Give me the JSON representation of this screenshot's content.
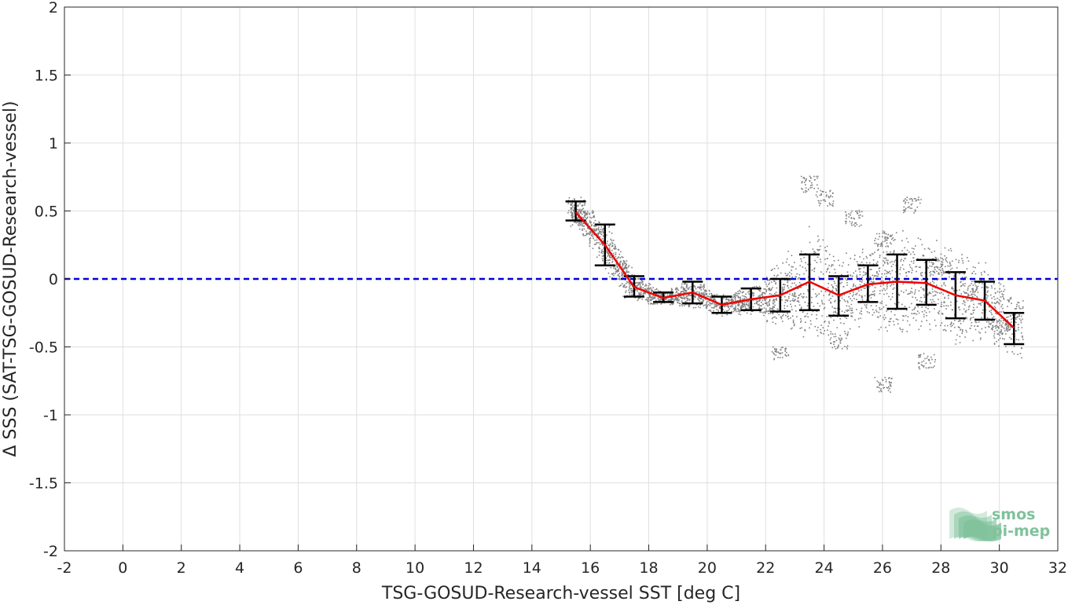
{
  "chart_data": {
    "type": "scatter",
    "xlabel": "TSG-GOSUD-Research-vessel SST [deg C]",
    "ylabel": "Δ SSS (SAT-TSG-GOSUD-Research-vessel)",
    "xlim": [
      -2,
      32
    ],
    "ylim": [
      -2,
      2
    ],
    "xticks": [
      -2,
      0,
      2,
      4,
      6,
      8,
      10,
      12,
      14,
      16,
      18,
      20,
      22,
      24,
      26,
      28,
      30,
      32
    ],
    "yticks": [
      -2,
      -1.5,
      -1,
      -0.5,
      0,
      0.5,
      1,
      1.5,
      2
    ],
    "grid": true,
    "reference_line": {
      "y": 0,
      "color": "#0000dd",
      "style": "dashed"
    },
    "scatter_cloud": {
      "color": "#808080",
      "note_points": [
        [
          15.5,
          0.55
        ],
        [
          15.8,
          0.45
        ],
        [
          16.2,
          0.35
        ],
        [
          16.6,
          0.2
        ],
        [
          17.0,
          0.05
        ],
        [
          17.4,
          -0.08
        ],
        [
          18.2,
          -0.12
        ],
        [
          19.0,
          -0.12
        ],
        [
          20.0,
          -0.15
        ],
        [
          21.0,
          -0.18
        ],
        [
          22.0,
          -0.2
        ],
        [
          23.0,
          -0.1
        ],
        [
          23.5,
          0.7
        ],
        [
          24.0,
          0.6
        ],
        [
          25.0,
          0.45
        ],
        [
          26.0,
          0.3
        ],
        [
          27.0,
          0.55
        ],
        [
          28.0,
          0.1
        ],
        [
          29.0,
          -0.1
        ],
        [
          30.0,
          -0.35
        ],
        [
          24.5,
          -0.45
        ],
        [
          26.0,
          -0.77
        ],
        [
          27.5,
          -0.6
        ],
        [
          22.5,
          -0.55
        ]
      ]
    },
    "series": [
      {
        "type": "line",
        "color": "#ee0000",
        "x": [
          15.5,
          16.5,
          17.5,
          18.5,
          19.5,
          20.5,
          21.5,
          22.5,
          23.5,
          24.5,
          25.5,
          26.5,
          27.5,
          28.5,
          29.5,
          30.5
        ],
        "values": [
          0.49,
          0.25,
          -0.06,
          -0.14,
          -0.1,
          -0.19,
          -0.15,
          -0.12,
          -0.02,
          -0.12,
          -0.04,
          -0.02,
          -0.03,
          -0.12,
          -0.16,
          -0.36
        ]
      }
    ],
    "error_bars": {
      "color": "#000000",
      "x": [
        15.5,
        16.5,
        17.5,
        18.5,
        19.5,
        20.5,
        21.5,
        22.5,
        23.5,
        24.5,
        25.5,
        26.5,
        27.5,
        28.5,
        29.5,
        30.5
      ],
      "upper": [
        0.57,
        0.4,
        0.02,
        -0.1,
        -0.02,
        -0.13,
        -0.07,
        0.0,
        0.18,
        0.02,
        0.1,
        0.18,
        0.14,
        0.05,
        -0.02,
        -0.25
      ],
      "lower": [
        0.43,
        0.1,
        -0.13,
        -0.17,
        -0.18,
        -0.25,
        -0.23,
        -0.24,
        -0.23,
        -0.27,
        -0.17,
        -0.22,
        -0.19,
        -0.29,
        -0.3,
        -0.48
      ]
    }
  },
  "logo": {
    "line1": "smos",
    "line2": "pi-mep",
    "color": "#7fc29b"
  }
}
